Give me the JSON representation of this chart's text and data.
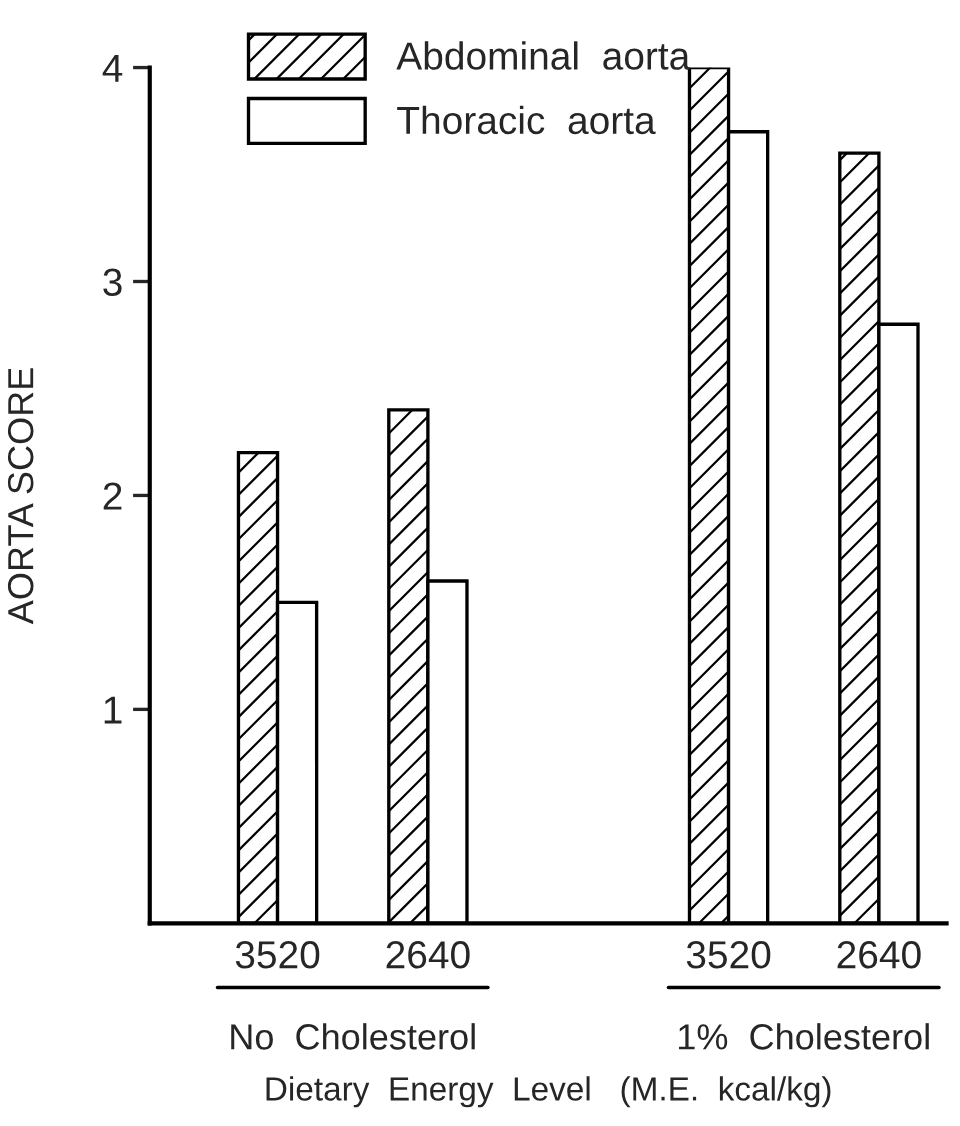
{
  "chart_data": {
    "type": "bar",
    "ylabel": "AORTA SCORE",
    "xlabel": "Dietary  Energy  Level   (M.E.  kcal/kg)",
    "categories": [
      "3520",
      "2640",
      null,
      "3520",
      "2640"
    ],
    "series": [
      {
        "name": "Abdominal  aorta",
        "color": "#000000",
        "values": [
          2.2,
          2.4,
          null,
          4.0,
          3.6
        ]
      },
      {
        "name": "Thoracic  aorta",
        "color": "#ffffff",
        "values": [
          1.5,
          1.6,
          null,
          3.7,
          2.8
        ]
      }
    ],
    "annotations": [
      "No  Cholesterol",
      "1%  Cholesterol"
    ],
    "ylim": [
      0,
      4
    ],
    "yticks": [
      1,
      2,
      3,
      4
    ],
    "grid": false,
    "legend": "top left"
  }
}
